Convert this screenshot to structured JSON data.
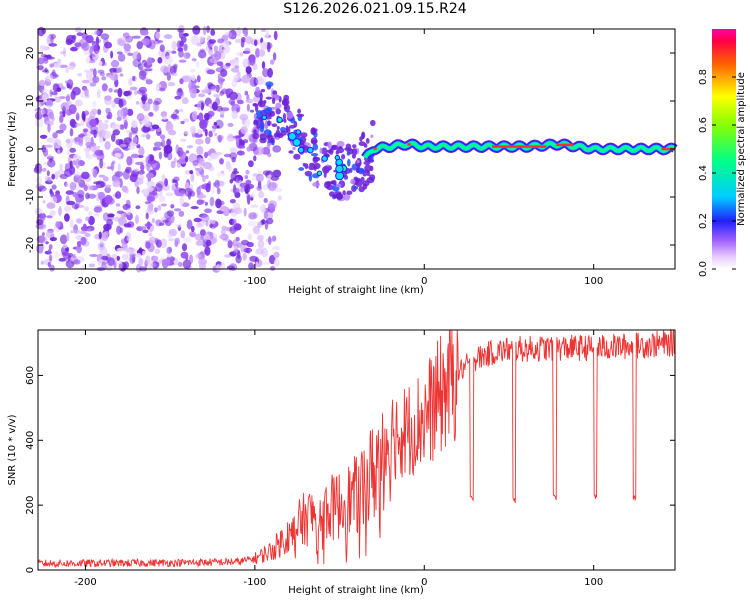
{
  "page_title": "S126.2026.021.09.15.R24",
  "chart_data": [
    {
      "type": "heatmap",
      "title": "S126.2026.021.09.15.R24",
      "xlabel": "Height of straight line (km)",
      "ylabel": "Frequency (Hz)",
      "xlim": [
        -228,
        148
      ],
      "ylim": [
        -25,
        25
      ],
      "xticks": [
        -200,
        -100,
        0,
        100
      ],
      "yticks": [
        -20,
        -10,
        0,
        10,
        20
      ],
      "colorbar": {
        "label": "Normalized spectral amplitude",
        "range": [
          0.0,
          1.0
        ],
        "ticks": [
          0.0,
          0.2,
          0.4,
          0.6,
          0.8
        ],
        "tick_labels": [
          "0.0",
          "0.2",
          "0.4",
          "0.6",
          "0.8"
        ]
      },
      "signal_trace": {
        "height_km": [
          -100,
          -90,
          -80,
          -70,
          -60,
          -50,
          -40,
          -35,
          -30,
          -20,
          -10,
          0,
          20,
          40,
          60,
          80,
          100,
          120,
          148
        ],
        "frequency_hz": [
          8,
          7.5,
          5,
          0,
          -3,
          -5,
          -4,
          -2,
          0,
          0.5,
          1,
          0.5,
          0.5,
          0.5,
          0.5,
          1,
          0,
          0,
          0
        ]
      }
    },
    {
      "type": "line",
      "xlabel": "Height of straight line (km)",
      "ylabel": "SNR (10 * v/v)",
      "xlim": [
        -228,
        148
      ],
      "ylim": [
        0,
        740
      ],
      "xticks": [
        -200,
        -100,
        0,
        100
      ],
      "yticks": [
        0,
        200,
        400,
        600
      ],
      "color": "#ee3333",
      "envelope": {
        "height_km": [
          -228,
          -150,
          -110,
          -100,
          -90,
          -80,
          -70,
          -60,
          -50,
          -40,
          -30,
          -25,
          -20,
          -10,
          0,
          10,
          20,
          30,
          40,
          50,
          80,
          100,
          120,
          148
        ],
        "snr_mean": [
          20,
          22,
          25,
          35,
          60,
          110,
          160,
          180,
          200,
          230,
          300,
          380,
          420,
          430,
          470,
          540,
          610,
          650,
          670,
          680,
          685,
          685,
          690,
          700
        ]
      },
      "dips": [
        {
          "height_km": 28,
          "snr": 210
        },
        {
          "height_km": 53,
          "snr": 205
        },
        {
          "height_km": 77,
          "snr": 215
        },
        {
          "height_km": 101,
          "snr": 215
        },
        {
          "height_km": 124,
          "snr": 215
        }
      ]
    }
  ]
}
